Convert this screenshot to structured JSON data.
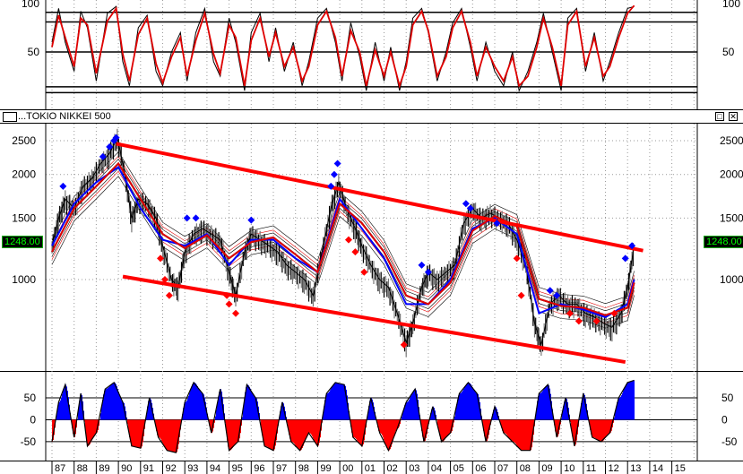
{
  "window": {
    "title": "...TOKIO NIKKEI 500",
    "restore_label": "□",
    "close_label": "✕"
  },
  "colors": {
    "price": "#000000",
    "signal_red": "#e00000",
    "signal_blue": "#0000ff",
    "channel": "#ff0000",
    "positive_fill": "#0000ff",
    "negative_fill": "#ff0000",
    "grid": "#808080",
    "price_label_bg": "#000000",
    "price_label_fg": "#00ff00"
  },
  "last_price_label": "1248.00",
  "x_axis": {
    "labels": [
      "87",
      "88",
      "89",
      "90",
      "91",
      "92",
      "93",
      "94",
      "95",
      "96",
      "97",
      "98",
      "99",
      "00",
      "01",
      "02",
      "03",
      "04",
      "05",
      "06",
      "07",
      "08",
      "09",
      "10",
      "11",
      "12",
      "13",
      "14",
      "15"
    ]
  },
  "chart_data": [
    {
      "type": "line",
      "panel": "stochastic",
      "y_ticks": [
        "100",
        "50"
      ],
      "ylim": [
        0,
        100
      ],
      "reference_lines": [
        8,
        14,
        50,
        81,
        91
      ],
      "series": [
        {
          "color": "#000000",
          "x": [
            1987,
            1987.3,
            1987.6,
            1988,
            1988.3,
            1988.6,
            1989,
            1989.5,
            1989.9,
            1990.2,
            1990.5,
            1990.9,
            1991.3,
            1991.7,
            1992.0,
            1992.4,
            1992.8,
            1993.1,
            1993.5,
            1993.9,
            1994.3,
            1994.6,
            1995.0,
            1995.3,
            1995.7,
            1996.0,
            1996.4,
            1996.8,
            1997.1,
            1997.5,
            1997.9,
            1998.3,
            1998.6,
            1999.0,
            1999.4,
            1999.8,
            2000.1,
            2000.5,
            2000.9,
            2001.2,
            2001.6,
            2002.0,
            2002.3,
            2002.7,
            2003.0,
            2003.3,
            2003.7,
            2004.0,
            2004.4,
            2004.8,
            2005.1,
            2005.5,
            2005.9,
            2006.2,
            2006.6,
            2007.0,
            2007.4,
            2007.8,
            2008.1,
            2008.5,
            2008.9,
            2009.2,
            2009.6,
            2010.0,
            2010.3,
            2010.7,
            2011.1,
            2011.5,
            2011.9,
            2012.2,
            2012.6,
            2013.0,
            2013.3
          ],
          "y": [
            60,
            95,
            60,
            30,
            92,
            75,
            20,
            90,
            97,
            40,
            15,
            75,
            88,
            30,
            15,
            50,
            70,
            20,
            70,
            95,
            40,
            25,
            85,
            60,
            10,
            70,
            90,
            40,
            75,
            30,
            60,
            15,
            40,
            85,
            95,
            60,
            20,
            80,
            45,
            10,
            60,
            20,
            55,
            10,
            40,
            85,
            95,
            70,
            20,
            50,
            80,
            95,
            55,
            20,
            60,
            30,
            15,
            50,
            10,
            30,
            60,
            90,
            50,
            10,
            85,
            95,
            30,
            70,
            20,
            40,
            70,
            95,
            97
          ]
        },
        {
          "color": "#e00000",
          "x": [
            1987,
            1987.3,
            1987.6,
            1988,
            1988.3,
            1988.6,
            1989,
            1989.5,
            1989.9,
            1990.2,
            1990.5,
            1990.9,
            1991.3,
            1991.7,
            1992.0,
            1992.4,
            1992.8,
            1993.1,
            1993.5,
            1993.9,
            1994.3,
            1994.6,
            1995.0,
            1995.3,
            1995.7,
            1996.0,
            1996.4,
            1996.8,
            1997.1,
            1997.5,
            1997.9,
            1998.3,
            1998.6,
            1999.0,
            1999.4,
            1999.8,
            2000.1,
            2000.5,
            2000.9,
            2001.2,
            2001.6,
            2002.0,
            2002.3,
            2002.7,
            2003.0,
            2003.3,
            2003.7,
            2004.0,
            2004.4,
            2004.8,
            2005.1,
            2005.5,
            2005.9,
            2006.2,
            2006.6,
            2007.0,
            2007.4,
            2007.8,
            2008.1,
            2008.5,
            2008.9,
            2009.2,
            2009.6,
            2010.0,
            2010.3,
            2010.7,
            2011.1,
            2011.5,
            2011.9,
            2012.2,
            2012.6,
            2013.0,
            2013.3
          ],
          "y": [
            55,
            88,
            65,
            35,
            85,
            78,
            28,
            82,
            95,
            48,
            20,
            68,
            85,
            38,
            18,
            45,
            65,
            25,
            62,
            90,
            48,
            28,
            78,
            65,
            15,
            62,
            85,
            45,
            70,
            35,
            55,
            20,
            35,
            78,
            92,
            65,
            25,
            72,
            50,
            15,
            52,
            25,
            50,
            15,
            35,
            78,
            92,
            72,
            25,
            45,
            75,
            92,
            60,
            25,
            55,
            35,
            20,
            45,
            15,
            25,
            55,
            85,
            55,
            15,
            78,
            92,
            35,
            65,
            25,
            35,
            65,
            90,
            98
          ]
        }
      ]
    },
    {
      "type": "line",
      "panel": "price",
      "title": "...TOKIO NIKKEI 500",
      "y_ticks": [
        "2500",
        "2000",
        "1500",
        "1000"
      ],
      "ylim": [
        560,
        2700
      ],
      "log_scale": true,
      "series": [
        {
          "name": "price",
          "color": "#000000",
          "x": [
            1987,
            1987.3,
            1987.6,
            1988,
            1988.4,
            1988.8,
            1989.2,
            1989.6,
            1989.95,
            1990.3,
            1990.6,
            1990.9,
            1991.3,
            1991.7,
            1992.0,
            1992.4,
            1992.7,
            1993.0,
            1993.4,
            1993.8,
            1994.2,
            1994.6,
            1995.0,
            1995.3,
            1995.7,
            1996.0,
            1996.4,
            1996.8,
            1997.2,
            1997.6,
            1998.0,
            1998.4,
            1998.8,
            1999.2,
            1999.6,
            1999.95,
            2000.3,
            2000.7,
            2001.0,
            2001.4,
            2001.8,
            2002.2,
            2002.6,
            2003.0,
            2003.3,
            2003.7,
            2004.0,
            2004.4,
            2004.8,
            2005.2,
            2005.6,
            2006.0,
            2006.4,
            2006.8,
            2007.2,
            2007.6,
            2008.0,
            2008.4,
            2008.8,
            2009.1,
            2009.5,
            2009.9,
            2010.3,
            2010.7,
            2011.1,
            2011.5,
            2011.9,
            2012.3,
            2012.7,
            2013.0,
            2013.3
          ],
          "y": [
            1250,
            1500,
            1700,
            1600,
            1850,
            1950,
            2150,
            2300,
            2550,
            2000,
            1500,
            1700,
            1650,
            1500,
            1250,
            1000,
            950,
            1200,
            1350,
            1400,
            1350,
            1300,
            1050,
            900,
            1200,
            1350,
            1300,
            1250,
            1200,
            1100,
            1050,
            1000,
            900,
            1200,
            1600,
            1900,
            1600,
            1400,
            1250,
            1100,
            1000,
            950,
            800,
            660,
            750,
            950,
            1050,
            1000,
            1050,
            1100,
            1450,
            1600,
            1500,
            1550,
            1500,
            1450,
            1300,
            1100,
            750,
            650,
            850,
            900,
            850,
            850,
            800,
            780,
            750,
            730,
            800,
            950,
            1250
          ]
        },
        {
          "name": "fast average",
          "color": "#0000ff",
          "x": [
            1987,
            1988,
            1989,
            1990,
            1991,
            1992,
            1993,
            1994,
            1995,
            1996,
            1997,
            1998,
            1999,
            2000,
            2001,
            2002,
            2003,
            2004,
            2005,
            2006,
            2007,
            2008,
            2009,
            2010,
            2011,
            2012,
            2013,
            2013.3
          ],
          "y": [
            1250,
            1650,
            1900,
            2100,
            1600,
            1300,
            1250,
            1350,
            1100,
            1300,
            1300,
            1150,
            1050,
            1700,
            1400,
            1150,
            850,
            850,
            1000,
            1400,
            1500,
            1350,
            800,
            850,
            820,
            780,
            850,
            1000
          ]
        },
        {
          "name": "slow average",
          "color": "#e00000",
          "x": [
            1987,
            1988,
            1989,
            1990,
            1991,
            1992,
            1993,
            1994,
            1995,
            1996,
            1997,
            1998,
            1999,
            2000,
            2001,
            2002,
            2003,
            2004,
            2005,
            2006,
            2007,
            2008,
            2009,
            2010,
            2011,
            2012,
            2013,
            2013.3
          ],
          "y": [
            1200,
            1600,
            1850,
            2150,
            1700,
            1350,
            1230,
            1340,
            1150,
            1280,
            1320,
            1180,
            1050,
            1650,
            1450,
            1200,
            900,
            850,
            980,
            1380,
            1520,
            1420,
            880,
            840,
            830,
            790,
            830,
            980
          ]
        },
        {
          "name": "long average",
          "color": "#000000",
          "x": [
            1990,
            1991,
            1992,
            1993,
            1994,
            1995,
            1996,
            1997,
            1998,
            1999,
            2000,
            2001,
            2002,
            2003,
            2004,
            2005,
            2006,
            2007,
            2008,
            2009,
            2010,
            2011,
            2012,
            2013
          ],
          "y": [
            1450,
            1450,
            1380,
            1320,
            1300,
            1260,
            1240,
            1250,
            1230,
            1200,
            1300,
            1350,
            1280,
            1150,
            1030,
            1020,
            1150,
            1250,
            1250,
            1080,
            980,
            920,
            860,
            830
          ]
        }
      ],
      "channel_lines": [
        {
          "x": [
            1989.9,
            2013.7
          ],
          "y": [
            2450,
            1210
          ]
        },
        {
          "x": [
            1990.2,
            2012.9
          ],
          "y": [
            1020,
            580
          ]
        }
      ],
      "markers": {
        "blue_diamonds": {
          "x": [
            1987.5,
            1989.3,
            1989.6,
            1989.8,
            1989.9,
            1993.1,
            1993.5,
            1996.0,
            1999.6,
            1999.75,
            1999.9,
            2003.7,
            2004.0,
            2005.7,
            2005.9,
            2007.1,
            2009.5,
            2009.8,
            2012.9,
            2013.2
          ],
          "y": [
            1850,
            2250,
            2400,
            2500,
            2550,
            1500,
            1500,
            1480,
            1850,
            2000,
            2150,
            1100,
            1050,
            1650,
            1600,
            1450,
            930,
            900,
            1150,
            1250
          ]
        },
        "red_diamonds": {
          "x": [
            1991.9,
            1992.1,
            1992.3,
            1994.9,
            1995.0,
            1995.3,
            2000.4,
            2000.7,
            2001.1,
            2002.9,
            2008.0,
            2008.2,
            2010.4,
            2010.8,
            2011.6,
            2012.4
          ],
          "y": [
            1150,
            1000,
            900,
            900,
            850,
            800,
            1300,
            1200,
            1050,
            650,
            1150,
            900,
            800,
            760,
            760,
            800
          ]
        }
      }
    },
    {
      "type": "area",
      "panel": "momentum",
      "y_ticks": [
        "50",
        "0",
        "-50"
      ],
      "ylim": [
        -85,
        95
      ],
      "reference_lines": [
        -50,
        0,
        50
      ],
      "x": [
        1987,
        1987.3,
        1987.6,
        1988,
        1988.3,
        1988.6,
        1989,
        1989.4,
        1989.8,
        1990.2,
        1990.6,
        1991.0,
        1991.4,
        1991.8,
        1992.2,
        1992.6,
        1993.0,
        1993.4,
        1993.8,
        1994.2,
        1994.6,
        1995.0,
        1995.4,
        1995.8,
        1996.2,
        1996.6,
        1997.0,
        1997.4,
        1997.8,
        1998.2,
        1998.6,
        1999.0,
        1999.4,
        1999.8,
        2000.2,
        2000.6,
        2001.0,
        2001.4,
        2001.8,
        2002.2,
        2002.6,
        2003.0,
        2003.4,
        2003.8,
        2004.2,
        2004.6,
        2005.0,
        2005.4,
        2005.8,
        2006.2,
        2006.6,
        2007.0,
        2007.4,
        2007.8,
        2008.2,
        2008.6,
        2009.0,
        2009.4,
        2009.8,
        2010.2,
        2010.6,
        2011.0,
        2011.4,
        2011.8,
        2012.2,
        2012.6,
        2013.0,
        2013.3
      ],
      "y": [
        -50,
        40,
        80,
        -40,
        60,
        -60,
        -30,
        70,
        85,
        40,
        -60,
        -65,
        50,
        -40,
        -70,
        -75,
        40,
        85,
        60,
        -30,
        70,
        -70,
        -50,
        80,
        50,
        -60,
        -70,
        40,
        -50,
        -70,
        -30,
        -60,
        60,
        85,
        80,
        -40,
        -60,
        50,
        -30,
        -70,
        -20,
        40,
        70,
        -50,
        30,
        -50,
        -30,
        60,
        85,
        60,
        -50,
        30,
        -30,
        -50,
        -70,
        -70,
        60,
        80,
        -40,
        50,
        -60,
        60,
        -40,
        -50,
        -30,
        50,
        85,
        90
      ]
    }
  ]
}
